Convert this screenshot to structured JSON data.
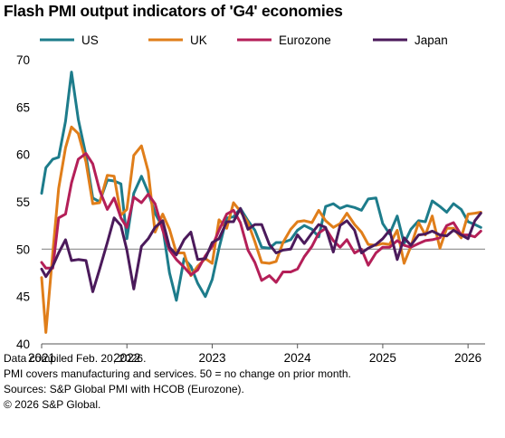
{
  "chart_data": {
    "type": "line",
    "title": "Flash PMI output indicators of 'G4' economies",
    "xlabel": "",
    "ylabel": "",
    "ylim": [
      40,
      70
    ],
    "yticks": [
      40,
      45,
      50,
      55,
      60,
      65,
      70
    ],
    "xlim": [
      2021.0,
      2026.2
    ],
    "xticks": [
      {
        "value": 2021,
        "label": "2021"
      },
      {
        "value": 2022,
        "label": "2022"
      },
      {
        "value": 2023,
        "label": "2023"
      },
      {
        "value": 2024,
        "label": "2024"
      },
      {
        "value": 2025,
        "label": "2025"
      },
      {
        "value": 2026,
        "label": "2026"
      }
    ],
    "reference_line": 50,
    "grid": false,
    "legend": "top",
    "series": [
      {
        "name": "US",
        "color": "#1d7c8b",
        "points": [
          [
            2021.0,
            55.9
          ],
          [
            2021.05,
            58.6
          ],
          [
            2021.13,
            59.5
          ],
          [
            2021.2,
            59.7
          ],
          [
            2021.28,
            63.5
          ],
          [
            2021.35,
            68.7
          ],
          [
            2021.43,
            63.7
          ],
          [
            2021.52,
            59.9
          ],
          [
            2021.6,
            55.4
          ],
          [
            2021.68,
            55.0
          ],
          [
            2021.77,
            57.3
          ],
          [
            2021.85,
            57.2
          ],
          [
            2021.93,
            56.9
          ],
          [
            2022.0,
            51.1
          ],
          [
            2022.08,
            55.9
          ],
          [
            2022.17,
            57.7
          ],
          [
            2022.25,
            56.0
          ],
          [
            2022.33,
            53.8
          ],
          [
            2022.42,
            52.3
          ],
          [
            2022.5,
            47.5
          ],
          [
            2022.58,
            44.6
          ],
          [
            2022.67,
            49.0
          ],
          [
            2022.75,
            48.2
          ],
          [
            2022.83,
            46.4
          ],
          [
            2022.92,
            45.0
          ],
          [
            2023.0,
            46.8
          ],
          [
            2023.08,
            50.1
          ],
          [
            2023.17,
            53.3
          ],
          [
            2023.25,
            53.4
          ],
          [
            2023.33,
            54.3
          ],
          [
            2023.42,
            53.0
          ],
          [
            2023.5,
            52.0
          ],
          [
            2023.58,
            50.2
          ],
          [
            2023.67,
            50.1
          ],
          [
            2023.75,
            50.7
          ],
          [
            2023.83,
            50.7
          ],
          [
            2023.92,
            51.0
          ],
          [
            2024.0,
            52.0
          ],
          [
            2024.08,
            52.5
          ],
          [
            2024.17,
            52.1
          ],
          [
            2024.25,
            51.3
          ],
          [
            2024.33,
            54.5
          ],
          [
            2024.42,
            54.8
          ],
          [
            2024.5,
            54.3
          ],
          [
            2024.58,
            54.6
          ],
          [
            2024.67,
            54.4
          ],
          [
            2024.75,
            54.1
          ],
          [
            2024.83,
            55.3
          ],
          [
            2024.92,
            55.4
          ],
          [
            2025.0,
            52.7
          ],
          [
            2025.08,
            51.6
          ],
          [
            2025.17,
            53.5
          ],
          [
            2025.25,
            50.6
          ],
          [
            2025.33,
            52.1
          ],
          [
            2025.42,
            53.0
          ],
          [
            2025.5,
            52.9
          ],
          [
            2025.58,
            55.1
          ],
          [
            2025.67,
            54.5
          ],
          [
            2025.75,
            53.9
          ],
          [
            2025.83,
            54.8
          ],
          [
            2025.92,
            54.2
          ],
          [
            2026.0,
            52.9
          ],
          [
            2026.08,
            52.6
          ],
          [
            2026.15,
            52.3
          ]
        ]
      },
      {
        "name": "UK",
        "color": "#e07e1a",
        "points": [
          [
            2021.0,
            47.0
          ],
          [
            2021.05,
            41.2
          ],
          [
            2021.13,
            49.6
          ],
          [
            2021.2,
            56.4
          ],
          [
            2021.28,
            60.7
          ],
          [
            2021.35,
            62.9
          ],
          [
            2021.43,
            62.2
          ],
          [
            2021.52,
            59.2
          ],
          [
            2021.6,
            54.8
          ],
          [
            2021.68,
            54.9
          ],
          [
            2021.77,
            57.8
          ],
          [
            2021.85,
            57.7
          ],
          [
            2021.93,
            53.6
          ],
          [
            2022.0,
            54.2
          ],
          [
            2022.08,
            59.9
          ],
          [
            2022.17,
            60.9
          ],
          [
            2022.25,
            58.2
          ],
          [
            2022.33,
            51.8
          ],
          [
            2022.42,
            53.7
          ],
          [
            2022.5,
            52.1
          ],
          [
            2022.58,
            49.6
          ],
          [
            2022.67,
            49.6
          ],
          [
            2022.75,
            47.2
          ],
          [
            2022.83,
            48.2
          ],
          [
            2022.92,
            49.0
          ],
          [
            2023.0,
            48.5
          ],
          [
            2023.08,
            53.1
          ],
          [
            2023.17,
            52.2
          ],
          [
            2023.25,
            54.9
          ],
          [
            2023.33,
            54.0
          ],
          [
            2023.42,
            52.8
          ],
          [
            2023.5,
            50.8
          ],
          [
            2023.58,
            48.6
          ],
          [
            2023.67,
            48.5
          ],
          [
            2023.75,
            48.7
          ],
          [
            2023.83,
            50.7
          ],
          [
            2023.92,
            52.1
          ],
          [
            2024.0,
            52.9
          ],
          [
            2024.08,
            53.0
          ],
          [
            2024.17,
            52.8
          ],
          [
            2024.25,
            54.1
          ],
          [
            2024.33,
            53.0
          ],
          [
            2024.42,
            52.3
          ],
          [
            2024.5,
            52.7
          ],
          [
            2024.58,
            53.8
          ],
          [
            2024.67,
            52.6
          ],
          [
            2024.75,
            51.8
          ],
          [
            2024.83,
            50.5
          ],
          [
            2024.92,
            50.4
          ],
          [
            2025.0,
            50.6
          ],
          [
            2025.08,
            50.5
          ],
          [
            2025.17,
            52.0
          ],
          [
            2025.25,
            48.5
          ],
          [
            2025.33,
            50.3
          ],
          [
            2025.42,
            52.8
          ],
          [
            2025.5,
            51.5
          ],
          [
            2025.58,
            53.5
          ],
          [
            2025.67,
            50.1
          ],
          [
            2025.75,
            52.2
          ],
          [
            2025.83,
            52.2
          ],
          [
            2025.92,
            51.2
          ],
          [
            2026.0,
            53.7
          ],
          [
            2026.08,
            53.8
          ],
          [
            2026.15,
            53.9
          ]
        ]
      },
      {
        "name": "Eurozone",
        "color": "#b41f58",
        "points": [
          [
            2021.0,
            48.6
          ],
          [
            2021.05,
            48.0
          ],
          [
            2021.13,
            48.0
          ],
          [
            2021.2,
            53.3
          ],
          [
            2021.28,
            53.7
          ],
          [
            2021.35,
            57.0
          ],
          [
            2021.43,
            59.5
          ],
          [
            2021.52,
            60.1
          ],
          [
            2021.6,
            59.0
          ],
          [
            2021.68,
            56.2
          ],
          [
            2021.77,
            54.2
          ],
          [
            2021.85,
            55.4
          ],
          [
            2021.93,
            53.3
          ],
          [
            2022.0,
            52.3
          ],
          [
            2022.08,
            55.5
          ],
          [
            2022.17,
            54.9
          ],
          [
            2022.25,
            55.8
          ],
          [
            2022.33,
            54.8
          ],
          [
            2022.42,
            52.0
          ],
          [
            2022.5,
            49.9
          ],
          [
            2022.58,
            48.9
          ],
          [
            2022.67,
            48.1
          ],
          [
            2022.75,
            47.3
          ],
          [
            2022.83,
            47.8
          ],
          [
            2022.92,
            49.3
          ],
          [
            2023.0,
            50.3
          ],
          [
            2023.08,
            52.0
          ],
          [
            2023.17,
            53.7
          ],
          [
            2023.25,
            54.1
          ],
          [
            2023.33,
            52.8
          ],
          [
            2023.42,
            49.9
          ],
          [
            2023.5,
            48.6
          ],
          [
            2023.58,
            46.7
          ],
          [
            2023.67,
            47.2
          ],
          [
            2023.75,
            46.5
          ],
          [
            2023.83,
            47.6
          ],
          [
            2023.92,
            47.6
          ],
          [
            2024.0,
            47.9
          ],
          [
            2024.08,
            49.2
          ],
          [
            2024.17,
            50.3
          ],
          [
            2024.25,
            51.7
          ],
          [
            2024.33,
            52.2
          ],
          [
            2024.42,
            50.9
          ],
          [
            2024.5,
            50.2
          ],
          [
            2024.58,
            51.0
          ],
          [
            2024.67,
            49.6
          ],
          [
            2024.75,
            50.0
          ],
          [
            2024.83,
            48.3
          ],
          [
            2024.92,
            49.6
          ],
          [
            2025.0,
            50.2
          ],
          [
            2025.08,
            50.2
          ],
          [
            2025.17,
            50.9
          ],
          [
            2025.25,
            50.4
          ],
          [
            2025.33,
            50.2
          ],
          [
            2025.42,
            50.6
          ],
          [
            2025.5,
            50.9
          ],
          [
            2025.58,
            51.0
          ],
          [
            2025.67,
            51.2
          ],
          [
            2025.75,
            52.5
          ],
          [
            2025.83,
            52.8
          ],
          [
            2025.92,
            51.5
          ],
          [
            2026.0,
            51.5
          ],
          [
            2026.08,
            51.3
          ],
          [
            2026.15,
            51.9
          ]
        ]
      },
      {
        "name": "Japan",
        "color": "#4b1a5b",
        "points": [
          [
            2021.0,
            47.9
          ],
          [
            2021.05,
            47.1
          ],
          [
            2021.13,
            48.2
          ],
          [
            2021.2,
            49.6
          ],
          [
            2021.28,
            51.0
          ],
          [
            2021.35,
            48.8
          ],
          [
            2021.43,
            48.9
          ],
          [
            2021.52,
            48.8
          ],
          [
            2021.6,
            45.5
          ],
          [
            2021.68,
            47.9
          ],
          [
            2021.77,
            50.7
          ],
          [
            2021.85,
            53.3
          ],
          [
            2021.93,
            52.5
          ],
          [
            2022.0,
            49.9
          ],
          [
            2022.08,
            45.8
          ],
          [
            2022.17,
            50.3
          ],
          [
            2022.25,
            51.1
          ],
          [
            2022.33,
            52.3
          ],
          [
            2022.42,
            53.0
          ],
          [
            2022.5,
            50.2
          ],
          [
            2022.58,
            49.4
          ],
          [
            2022.67,
            51.0
          ],
          [
            2022.75,
            51.8
          ],
          [
            2022.83,
            48.9
          ],
          [
            2022.92,
            49.0
          ],
          [
            2023.0,
            50.7
          ],
          [
            2023.08,
            51.1
          ],
          [
            2023.17,
            52.9
          ],
          [
            2023.25,
            52.9
          ],
          [
            2023.33,
            54.3
          ],
          [
            2023.42,
            52.1
          ],
          [
            2023.5,
            52.6
          ],
          [
            2023.58,
            52.6
          ],
          [
            2023.67,
            50.5
          ],
          [
            2023.75,
            49.6
          ],
          [
            2023.83,
            49.9
          ],
          [
            2023.92,
            50.0
          ],
          [
            2024.0,
            51.5
          ],
          [
            2024.08,
            50.6
          ],
          [
            2024.17,
            51.7
          ],
          [
            2024.25,
            52.6
          ],
          [
            2024.33,
            52.3
          ],
          [
            2024.42,
            49.7
          ],
          [
            2024.5,
            52.5
          ],
          [
            2024.58,
            53.0
          ],
          [
            2024.67,
            52.0
          ],
          [
            2024.75,
            49.6
          ],
          [
            2024.83,
            50.1
          ],
          [
            2024.92,
            50.5
          ],
          [
            2025.0,
            51.1
          ],
          [
            2025.08,
            52.0
          ],
          [
            2025.17,
            48.9
          ],
          [
            2025.25,
            51.2
          ],
          [
            2025.33,
            50.4
          ],
          [
            2025.42,
            51.5
          ],
          [
            2025.5,
            51.6
          ],
          [
            2025.58,
            51.9
          ],
          [
            2025.67,
            51.5
          ],
          [
            2025.75,
            51.4
          ],
          [
            2025.83,
            52.0
          ],
          [
            2025.92,
            51.5
          ],
          [
            2026.0,
            51.1
          ],
          [
            2026.08,
            53.0
          ],
          [
            2026.15,
            53.8
          ]
        ]
      }
    ]
  },
  "notes": [
    "Data compiled Feb. 20, 2026.",
    "PMI covers manufacturing and services. 50 = no change on prior month.",
    "Sources: S&P Global PMI with HCOB (Eurozone).",
    "© 2026 S&P Global."
  ]
}
